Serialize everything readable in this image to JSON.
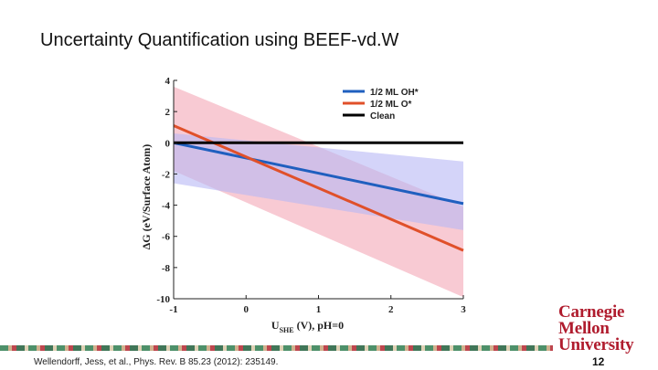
{
  "slide": {
    "title": "Uncertainty Quantification using BEEF-vd.W",
    "citation": "Wellendorff, Jess, et al., Phys. Rev. B 85.23 (2012): 235149.",
    "page_number": "12",
    "logo_lines": [
      "Carnegie",
      "Mellon",
      "University"
    ],
    "logo_color": "#b01c2e"
  },
  "chart_data": {
    "type": "line",
    "x_label_main": "U",
    "x_label_sub": "SHE",
    "x_label_rest": " (V), pH=0",
    "y_label": "ΔG (eV/Surface Atom)",
    "xlim": [
      -1,
      3
    ],
    "ylim": [
      -10,
      4
    ],
    "x_ticks": [
      "-1",
      "0",
      "1",
      "2",
      "3"
    ],
    "y_ticks": [
      "4",
      "2",
      "0",
      "-2",
      "-4",
      "-6",
      "-8",
      "-10"
    ],
    "legend_position": "top-right",
    "series": [
      {
        "name": "1/2 ML OH*",
        "color": "#1f5fbf",
        "band_color": "#b8b8f5",
        "x": [
          -1,
          3
        ],
        "y": [
          0.0,
          -3.9
        ],
        "band_upper": [
          0.6,
          -1.2
        ],
        "band_lower": [
          -2.6,
          -5.6
        ]
      },
      {
        "name": "1/2 ML O*",
        "color": "#e0502a",
        "band_color": "#f5b8c4",
        "x": [
          -1,
          3
        ],
        "y": [
          1.1,
          -6.9
        ],
        "band_upper": [
          3.6,
          -4.1
        ],
        "band_lower": [
          -1.8,
          -9.9
        ]
      },
      {
        "name": "Clean",
        "color": "#000000",
        "x": [
          -1,
          3
        ],
        "y": [
          0,
          0
        ]
      }
    ]
  }
}
